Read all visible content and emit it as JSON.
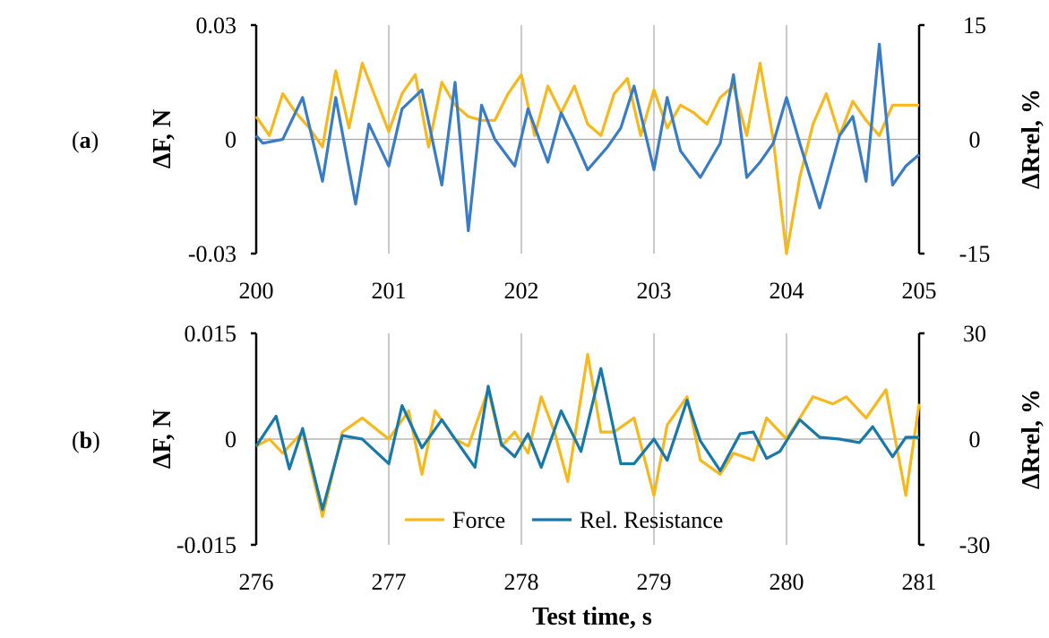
{
  "colors": {
    "force": "#F6B91D",
    "resistance_a": "#3A7CC4",
    "resistance_b": "#1878A8",
    "grid": "#A6A6A6",
    "axis": "#000000"
  },
  "xlabel": "Test time, s",
  "legend": {
    "force": "Force",
    "resistance": "Rel. Resistance"
  },
  "chart_data": [
    {
      "panel": "(a)",
      "panel_label": {
        "open": "(",
        "letter": "a",
        "close": ")"
      },
      "type": "line",
      "ylabel": "ΔF, N",
      "y2label": "ΔRrel, %",
      "xlim": [
        200,
        205
      ],
      "ylim": [
        -0.03,
        0.03
      ],
      "y2lim": [
        -15,
        15
      ],
      "x_ticks": [
        "200",
        "201",
        "202",
        "203",
        "204",
        "205"
      ],
      "y_ticks": [
        "0.03",
        "0",
        "-0.03"
      ],
      "y2_ticks": [
        "15",
        "0",
        "-15"
      ],
      "series": [
        {
          "name": "Force",
          "axis": "left",
          "x": [
            200.0,
            200.1,
            200.2,
            200.3,
            200.4,
            200.5,
            200.6,
            200.7,
            200.8,
            200.9,
            201.0,
            201.1,
            201.2,
            201.3,
            201.4,
            201.5,
            201.6,
            201.7,
            201.8,
            201.9,
            202.0,
            202.1,
            202.2,
            202.3,
            202.4,
            202.5,
            202.6,
            202.7,
            202.8,
            202.9,
            203.0,
            203.1,
            203.2,
            203.3,
            203.4,
            203.5,
            203.6,
            203.7,
            203.8,
            203.9,
            204.0,
            204.1,
            204.2,
            204.3,
            204.4,
            204.5,
            204.6,
            204.7,
            204.8,
            204.9,
            205.0
          ],
          "values": [
            0.006,
            0.001,
            0.012,
            0.007,
            0.003,
            -0.002,
            0.018,
            0.003,
            0.02,
            0.011,
            0.002,
            0.012,
            0.017,
            -0.002,
            0.015,
            0.009,
            0.006,
            0.005,
            0.005,
            0.012,
            0.017,
            0.001,
            0.014,
            0.007,
            0.014,
            0.004,
            0.001,
            0.012,
            0.016,
            0.001,
            0.013,
            0.003,
            0.009,
            0.007,
            0.004,
            0.011,
            0.014,
            0.001,
            0.02,
            0.0,
            -0.03,
            -0.01,
            0.004,
            0.012,
            0.001,
            0.01,
            0.005,
            0.001,
            0.009,
            0.009,
            0.009
          ]
        },
        {
          "name": "Rel. Resistance",
          "axis": "right",
          "x": [
            200.0,
            200.05,
            200.2,
            200.35,
            200.5,
            200.6,
            200.75,
            200.85,
            201.0,
            201.1,
            201.25,
            201.4,
            201.5,
            201.6,
            201.7,
            201.8,
            201.95,
            202.05,
            202.2,
            202.3,
            202.4,
            202.5,
            202.65,
            202.75,
            202.85,
            203.0,
            203.1,
            203.2,
            203.35,
            203.5,
            203.6,
            203.7,
            203.8,
            203.9,
            204.0,
            204.1,
            204.25,
            204.4,
            204.5,
            204.6,
            204.7,
            204.8,
            204.9,
            205.0
          ],
          "values": [
            0.5,
            -0.5,
            0.0,
            5.5,
            -5.5,
            5.5,
            -8.5,
            2.0,
            -3.5,
            4.0,
            6.5,
            -6.0,
            7.5,
            -12.0,
            4.5,
            0.0,
            -3.5,
            4.0,
            -3.0,
            3.5,
            0.0,
            -4.0,
            -1.0,
            1.5,
            7.0,
            -4.0,
            5.5,
            -1.5,
            -5.0,
            -0.5,
            8.5,
            -5.0,
            -3.0,
            -0.5,
            5.5,
            -0.5,
            -9.0,
            0.5,
            3.0,
            -5.5,
            12.5,
            -6.0,
            -3.5,
            -2.0
          ]
        }
      ]
    },
    {
      "panel": "(b)",
      "panel_label": {
        "open": "(",
        "letter": "b",
        "close": ")"
      },
      "type": "line",
      "ylabel": "ΔF, N",
      "y2label": "ΔRrel, %",
      "xlim": [
        276,
        281
      ],
      "ylim": [
        -0.015,
        0.015
      ],
      "y2lim": [
        -30,
        30
      ],
      "x_ticks": [
        "276",
        "277",
        "278",
        "279",
        "280",
        "281"
      ],
      "y_ticks": [
        "0.015",
        "0",
        "-0.015"
      ],
      "y2_ticks": [
        "30",
        "0",
        "-30"
      ],
      "series": [
        {
          "name": "Force",
          "axis": "left",
          "x": [
            276.0,
            276.1,
            276.2,
            276.35,
            276.5,
            276.65,
            276.8,
            277.0,
            277.15,
            277.25,
            277.35,
            277.5,
            277.6,
            277.75,
            277.85,
            277.95,
            278.05,
            278.15,
            278.25,
            278.35,
            278.5,
            278.6,
            278.7,
            278.85,
            279.0,
            279.1,
            279.25,
            279.35,
            279.5,
            279.6,
            279.75,
            279.85,
            280.0,
            280.2,
            280.35,
            280.45,
            280.6,
            280.75,
            280.9,
            281.0
          ],
          "values": [
            -0.001,
            0.0,
            -0.002,
            0.001,
            -0.011,
            0.001,
            0.003,
            0.0,
            0.004,
            -0.005,
            0.004,
            0.0,
            -0.001,
            0.007,
            -0.001,
            0.001,
            -0.002,
            0.006,
            0.001,
            -0.006,
            0.012,
            0.001,
            0.001,
            0.003,
            -0.008,
            0.002,
            0.006,
            -0.003,
            -0.005,
            -0.002,
            -0.003,
            0.003,
            0.0,
            0.006,
            0.005,
            0.006,
            0.003,
            0.007,
            -0.008,
            0.005
          ]
        },
        {
          "name": "Rel. Resistance",
          "axis": "right",
          "x": [
            276.0,
            276.15,
            276.25,
            276.35,
            276.5,
            276.65,
            276.8,
            277.0,
            277.1,
            277.25,
            277.4,
            277.5,
            277.65,
            277.75,
            277.85,
            277.95,
            278.05,
            278.15,
            278.3,
            278.45,
            278.6,
            278.75,
            278.85,
            279.0,
            279.1,
            279.25,
            279.35,
            279.5,
            279.65,
            279.75,
            279.85,
            279.95,
            280.1,
            280.25,
            280.4,
            280.55,
            280.65,
            280.8,
            280.9,
            281.0
          ],
          "values": [
            -2.0,
            6.5,
            -8.5,
            3.0,
            -20.0,
            1.0,
            0.0,
            -7.0,
            9.5,
            -2.5,
            5.5,
            0.0,
            -8.0,
            15.0,
            -1.5,
            -5.0,
            1.5,
            -8.0,
            8.0,
            -3.5,
            20.0,
            -7.0,
            -7.0,
            0.0,
            -6.0,
            11.0,
            -0.5,
            -9.0,
            1.5,
            2.0,
            -5.5,
            -3.5,
            5.5,
            0.5,
            0.0,
            -1.0,
            3.5,
            -5.0,
            0.5,
            0.5
          ]
        }
      ]
    }
  ]
}
